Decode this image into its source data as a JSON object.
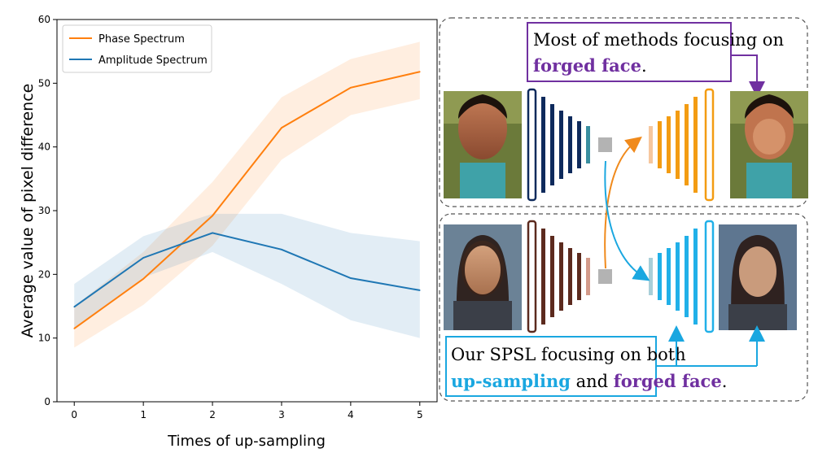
{
  "chart_data": {
    "type": "line",
    "x": [
      0,
      1,
      2,
      3,
      4,
      5
    ],
    "xlabel": "Times of up-sampling",
    "ylabel": "Average value of pixel difference",
    "xlim": [
      -0.25,
      5.25
    ],
    "ylim": [
      0,
      60
    ],
    "xticks": [
      0,
      1,
      2,
      3,
      4,
      5
    ],
    "yticks": [
      0,
      10,
      20,
      30,
      40,
      50,
      60
    ],
    "grid": false,
    "legend_position": "top-left",
    "series": [
      {
        "name": "Phase Spectrum",
        "color": "#ff7f0e",
        "values": [
          11.5,
          19.3,
          29.2,
          43.0,
          49.3,
          51.8
        ],
        "band_upper": [
          15.0,
          23.5,
          34.5,
          47.8,
          53.8,
          56.5
        ],
        "band_lower": [
          8.5,
          15.2,
          24.5,
          38.0,
          45.0,
          47.5
        ]
      },
      {
        "name": "Amplitude Spectrum",
        "color": "#1f77b4",
        "values": [
          14.9,
          22.6,
          26.5,
          23.9,
          19.4,
          17.5
        ],
        "band_upper": [
          18.5,
          26.0,
          29.5,
          29.5,
          26.5,
          25.2
        ],
        "band_lower": [
          11.5,
          19.5,
          23.5,
          18.5,
          12.8,
          10.0
        ]
      }
    ]
  },
  "diagram": {
    "top_callout": {
      "line1": "Most of methods focusing on",
      "line2_bold": "forged face",
      "line2_end": "."
    },
    "bottom_callout": {
      "line1": "Our SPSL focusing on both",
      "line2_bold1": "up-sampling",
      "line2_mid": " and ",
      "line2_bold2": "forged face",
      "line2_end": "."
    },
    "colors": {
      "top_encoder": "#0e2a5c",
      "top_decoder": "#f39c12",
      "bottom_encoder": "#5c2a1e",
      "bottom_decoder": "#21b0e8",
      "purple": "#7030a0",
      "cyan": "#1aa7e0"
    }
  }
}
